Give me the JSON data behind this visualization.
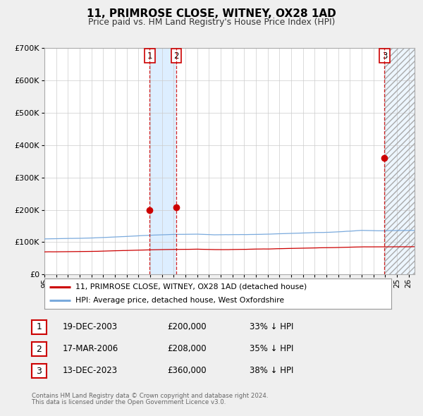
{
  "title": "11, PRIMROSE CLOSE, WITNEY, OX28 1AD",
  "subtitle": "Price paid vs. HM Land Registry's House Price Index (HPI)",
  "legend_line1": "11, PRIMROSE CLOSE, WITNEY, OX28 1AD (detached house)",
  "legend_line2": "HPI: Average price, detached house, West Oxfordshire",
  "footer1": "Contains HM Land Registry data © Crown copyright and database right 2024.",
  "footer2": "This data is licensed under the Open Government Licence v3.0.",
  "transactions": [
    {
      "num": 1,
      "date": "19-DEC-2003",
      "price": 200000,
      "pct": "33%",
      "x_year": 2003.97
    },
    {
      "num": 2,
      "date": "17-MAR-2006",
      "price": 208000,
      "pct": "35%",
      "x_year": 2006.21
    },
    {
      "num": 3,
      "date": "13-DEC-2023",
      "price": 360000,
      "pct": "38%",
      "x_year": 2023.95
    }
  ],
  "xmin": 1995.0,
  "xmax": 2026.5,
  "ymin": 0,
  "ymax": 700000,
  "yticks": [
    0,
    100000,
    200000,
    300000,
    400000,
    500000,
    600000,
    700000
  ],
  "ytick_labels": [
    "£0",
    "£100K",
    "£200K",
    "£300K",
    "£400K",
    "£500K",
    "£600K",
    "£700K"
  ],
  "price_color": "#cc0000",
  "hpi_color": "#7aaadd",
  "bg_color": "#efefef",
  "plot_bg": "#ffffff",
  "shade_color": "#ddeeff",
  "hatch_color": "#cccccc",
  "shaded_region1_x1": 2003.97,
  "shaded_region1_x2": 2006.21,
  "shaded_region2_x1": 2023.95,
  "shaded_region2_x2": 2026.5
}
